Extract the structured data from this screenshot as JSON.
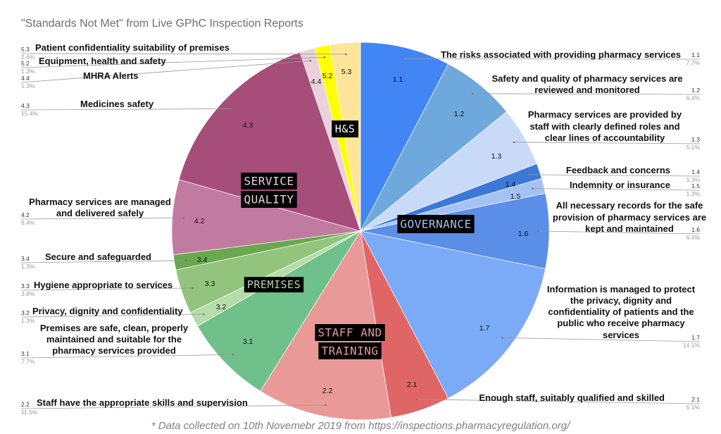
{
  "chart_data": {
    "type": "pie",
    "title": "\"Standards Not Met\" from Live GPhC Inspection Reports",
    "footnote": "* Data collected on 10th Novemebr 2019 from https://inspections.pharmacyregulation.org/",
    "slices": [
      {
        "code": "1.1",
        "label": "The risks associated with providing pharmacy services",
        "value": 7.7,
        "percent": "7.7%",
        "color": "#4285f4"
      },
      {
        "code": "1.2",
        "label": "Safety and quality of pharmacy services are reviewed and monitored",
        "value": 6.4,
        "percent": "6.4%",
        "color": "#6fa8dc"
      },
      {
        "code": "1.3",
        "label": "Pharmacy services are provided by staff with clearly defined roles and clear lines of accountability",
        "value": 5.1,
        "percent": "5.1%",
        "color": "#c9daf8"
      },
      {
        "code": "1.4",
        "label": "Feedback and concerns",
        "value": 1.3,
        "percent": "1.3%",
        "color": "#3c78d8"
      },
      {
        "code": "1.5",
        "label": "Indemnity or insurance",
        "value": 1.3,
        "percent": "1.3%",
        "color": "#a4c2f4"
      },
      {
        "code": "1.6",
        "label": "All necessary records for the safe provision of pharmacy services are kept and maintained",
        "value": 6.4,
        "percent": "6.4%",
        "color": "#5b8ee6"
      },
      {
        "code": "1.7",
        "label": "Information is managed to protect the privacy, dignity and confidentiality of patients and the public who receive pharmacy services",
        "value": 14.1,
        "percent": "14.1%",
        "color": "#7baaf7"
      },
      {
        "code": "2.1",
        "label": "Enough staff, suitably qualified and skilled",
        "value": 5.1,
        "percent": "5.1%",
        "color": "#e06666"
      },
      {
        "code": "2.2",
        "label": "Staff have the appropriate skills and supervision",
        "value": 11.5,
        "percent": "11.5%",
        "color": "#ea9999"
      },
      {
        "code": "3.1",
        "label": "Premises are safe, clean, properly maintained and suitable for the pharmacy services provided",
        "value": 7.7,
        "percent": "7.7%",
        "color": "#6fc08a"
      },
      {
        "code": "3.2",
        "label": "Privacy, dignity and confidentiality",
        "value": 1.3,
        "percent": "1.3%",
        "color": "#b6dcaa"
      },
      {
        "code": "3.3",
        "label": "Hygiene appropriate to services",
        "value": 3.8,
        "percent": "3.8%",
        "color": "#93c47d"
      },
      {
        "code": "3.4",
        "label": "Secure and safeguarded",
        "value": 1.3,
        "percent": "1.3%",
        "color": "#6aa84f"
      },
      {
        "code": "4.2",
        "label": "Pharmacy services are managed and delivered safely",
        "value": 6.4,
        "percent": "6.4%",
        "color": "#c27ba0"
      },
      {
        "code": "4.3",
        "label": "Medicines safety",
        "value": 15.4,
        "percent": "15.4%",
        "color": "#a64d79"
      },
      {
        "code": "4.4",
        "label": "MHRA Alerts",
        "value": 1.3,
        "percent": "1.3%",
        "color": "#ead1dc"
      },
      {
        "code": "5.2",
        "label": "Equipment, health and safety",
        "value": 1.3,
        "percent": "1.3%",
        "color": "#ffff00"
      },
      {
        "code": "5.3",
        "label": "Patient confidentiality suitability of premises",
        "value": 2.6,
        "percent": "2.6%",
        "color": "#ffe599"
      }
    ],
    "groups": [
      {
        "label": "GOVERNANCE"
      },
      {
        "label": "STAFF AND TRAINING"
      },
      {
        "label": "PREMISES"
      },
      {
        "label": "SERVICE QUALITY"
      },
      {
        "label": "H&S"
      }
    ]
  }
}
